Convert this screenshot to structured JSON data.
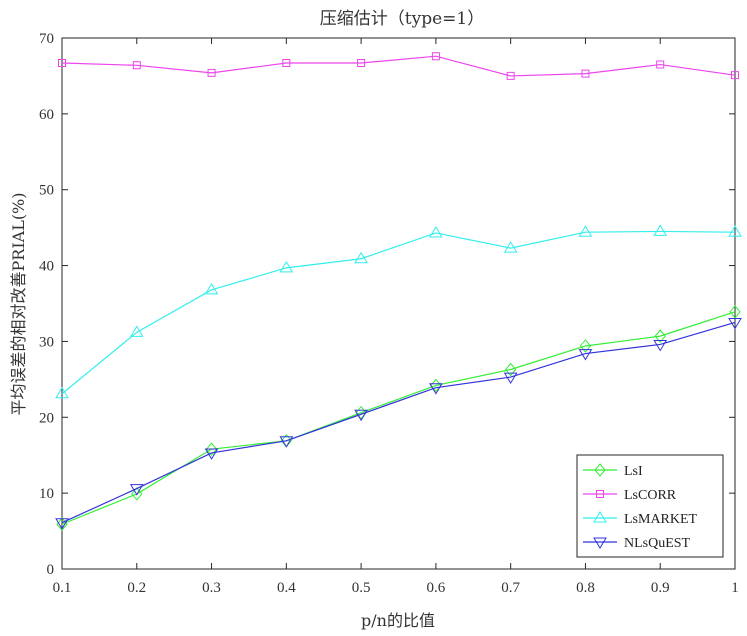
{
  "chart_data": {
    "type": "line",
    "title": "压缩估计（type=1）",
    "xlabel": "p/n的比值",
    "ylabel": "平均误差的相对改善PRIAL(%)",
    "x": [
      0.1,
      0.2,
      0.3,
      0.4,
      0.5,
      0.6,
      0.7,
      0.8,
      0.9,
      1
    ],
    "x_tick_labels": [
      "0.1",
      "0.2",
      "0.3",
      "0.4",
      "0.5",
      "0.6",
      "0.7",
      "0.8",
      "0.9",
      "1"
    ],
    "xlim": [
      0.1,
      1
    ],
    "ylim": [
      0,
      70
    ],
    "y_ticks": [
      0,
      10,
      20,
      30,
      40,
      50,
      60,
      70
    ],
    "y_tick_labels": [
      "0",
      "10",
      "20",
      "30",
      "40",
      "50",
      "60",
      "70"
    ],
    "grid": false,
    "legend_position": "bottom-right",
    "series": [
      {
        "name": "LsI",
        "color": "#33ee33",
        "marker": "diamond",
        "values": [
          5.9,
          9.9,
          15.8,
          16.9,
          20.6,
          24.2,
          26.3,
          29.4,
          30.7,
          33.9
        ]
      },
      {
        "name": "LsCORR",
        "color": "#ee44ee",
        "marker": "square",
        "values": [
          66.7,
          66.4,
          65.4,
          66.7,
          66.7,
          67.6,
          65.0,
          65.3,
          66.5,
          65.1
        ]
      },
      {
        "name": "LsMARKET",
        "color": "#33eeee",
        "marker": "triangle-up",
        "values": [
          23.1,
          31.2,
          36.8,
          39.7,
          40.9,
          44.3,
          42.3,
          44.4,
          44.5,
          44.4
        ]
      },
      {
        "name": "NLsQuEST",
        "color": "#3333dd",
        "marker": "triangle-down",
        "values": [
          6.1,
          10.6,
          15.3,
          16.9,
          20.4,
          23.9,
          25.3,
          28.4,
          29.6,
          32.5
        ]
      }
    ]
  }
}
